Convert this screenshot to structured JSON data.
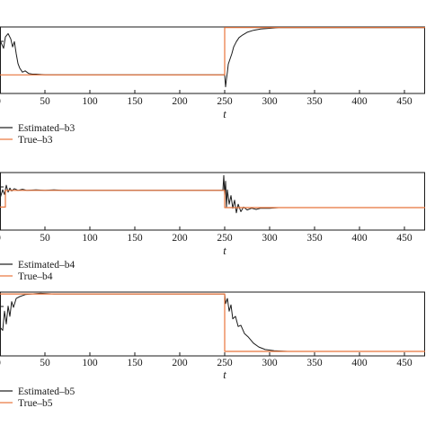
{
  "chart_data": [
    {
      "type": "line",
      "xlabel": "t",
      "xticks": [
        50,
        100,
        150,
        200,
        250,
        300,
        350,
        400,
        450
      ],
      "xlim": [
        0,
        473
      ],
      "ylim": [
        0,
        1
      ],
      "series": [
        {
          "name": "Estimated–b3",
          "color": "#1a1a1a",
          "points": [
            [
              0,
              0.8
            ],
            [
              4,
              0.68
            ],
            [
              6,
              0.85
            ],
            [
              9,
              0.9
            ],
            [
              12,
              0.82
            ],
            [
              14,
              0.7
            ],
            [
              16,
              0.78
            ],
            [
              18,
              0.6
            ],
            [
              20,
              0.45
            ],
            [
              22,
              0.38
            ],
            [
              25,
              0.32
            ],
            [
              28,
              0.34
            ],
            [
              32,
              0.3
            ],
            [
              36,
              0.29
            ],
            [
              40,
              0.29
            ],
            [
              50,
              0.28
            ],
            [
              60,
              0.28
            ],
            [
              70,
              0.28
            ],
            [
              85,
              0.28
            ],
            [
              250,
              0.28
            ],
            [
              251,
              0.1
            ],
            [
              252,
              0.22
            ],
            [
              253,
              0.32
            ],
            [
              254,
              0.44
            ],
            [
              256,
              0.52
            ],
            [
              258,
              0.6
            ],
            [
              260,
              0.7
            ],
            [
              263,
              0.78
            ],
            [
              266,
              0.84
            ],
            [
              270,
              0.88
            ],
            [
              275,
              0.92
            ],
            [
              282,
              0.95
            ],
            [
              290,
              0.97
            ],
            [
              300,
              0.98
            ],
            [
              310,
              0.99
            ],
            [
              473,
              0.99
            ]
          ]
        },
        {
          "name": "True–b3",
          "color": "#e8743b",
          "points": [
            [
              0,
              0.28
            ],
            [
              250,
              0.28
            ],
            [
              250,
              0.99
            ],
            [
              473,
              0.99
            ]
          ]
        }
      ]
    },
    {
      "type": "line",
      "xlabel": "t",
      "xticks": [
        50,
        100,
        150,
        200,
        250,
        300,
        350,
        400,
        450
      ],
      "xlim": [
        0,
        473
      ],
      "ylim": [
        0,
        1
      ],
      "series": [
        {
          "name": "Estimated–b4",
          "color": "#1a1a1a",
          "points": [
            [
              0,
              0.55
            ],
            [
              3,
              0.7
            ],
            [
              5,
              0.62
            ],
            [
              7,
              0.78
            ],
            [
              9,
              0.66
            ],
            [
              11,
              0.73
            ],
            [
              13,
              0.68
            ],
            [
              16,
              0.72
            ],
            [
              20,
              0.69
            ],
            [
              25,
              0.71
            ],
            [
              30,
              0.69
            ],
            [
              40,
              0.7
            ],
            [
              50,
              0.69
            ],
            [
              60,
              0.7
            ],
            [
              70,
              0.69
            ],
            [
              90,
              0.69
            ],
            [
              248,
              0.69
            ],
            [
              249,
              0.95
            ],
            [
              250,
              0.6
            ],
            [
              251,
              0.85
            ],
            [
              252,
              0.4
            ],
            [
              253,
              0.7
            ],
            [
              255,
              0.45
            ],
            [
              257,
              0.6
            ],
            [
              259,
              0.38
            ],
            [
              261,
              0.52
            ],
            [
              263,
              0.3
            ],
            [
              265,
              0.45
            ],
            [
              268,
              0.32
            ],
            [
              271,
              0.4
            ],
            [
              275,
              0.35
            ],
            [
              280,
              0.38
            ],
            [
              285,
              0.36
            ],
            [
              290,
              0.38
            ],
            [
              300,
              0.38
            ],
            [
              310,
              0.39
            ],
            [
              473,
              0.39
            ]
          ]
        },
        {
          "name": "True–b4",
          "color": "#e8743b",
          "points": [
            [
              0,
              0.4
            ],
            [
              6,
              0.4
            ],
            [
              6,
              0.69
            ],
            [
              250,
              0.69
            ],
            [
              250,
              0.39
            ],
            [
              473,
              0.39
            ]
          ]
        }
      ]
    },
    {
      "type": "line",
      "xlabel": "t",
      "xticks": [
        50,
        100,
        150,
        200,
        250,
        300,
        350,
        400,
        450
      ],
      "xlim": [
        0,
        473
      ],
      "ylim": [
        0,
        1
      ],
      "series": [
        {
          "name": "Estimated–b5",
          "color": "#1a1a1a",
          "points": [
            [
              0,
              0.45
            ],
            [
              3,
              0.4
            ],
            [
              5,
              0.7
            ],
            [
              7,
              0.5
            ],
            [
              9,
              0.78
            ],
            [
              11,
              0.62
            ],
            [
              13,
              0.85
            ],
            [
              15,
              0.76
            ],
            [
              18,
              0.9
            ],
            [
              22,
              0.93
            ],
            [
              28,
              0.96
            ],
            [
              35,
              0.97
            ],
            [
              45,
              0.98
            ],
            [
              60,
              0.97
            ],
            [
              80,
              0.97
            ],
            [
              250,
              0.97
            ],
            [
              251,
              0.82
            ],
            [
              253,
              0.9
            ],
            [
              255,
              0.7
            ],
            [
              257,
              0.8
            ],
            [
              259,
              0.58
            ],
            [
              262,
              0.62
            ],
            [
              265,
              0.46
            ],
            [
              268,
              0.48
            ],
            [
              272,
              0.35
            ],
            [
              276,
              0.3
            ],
            [
              282,
              0.2
            ],
            [
              288,
              0.14
            ],
            [
              295,
              0.1
            ],
            [
              305,
              0.08
            ],
            [
              320,
              0.07
            ],
            [
              473,
              0.07
            ]
          ]
        },
        {
          "name": "True–b5",
          "color": "#e8743b",
          "points": [
            [
              0,
              0.97
            ],
            [
              250,
              0.97
            ],
            [
              250,
              0.07
            ],
            [
              473,
              0.07
            ]
          ]
        }
      ]
    }
  ]
}
